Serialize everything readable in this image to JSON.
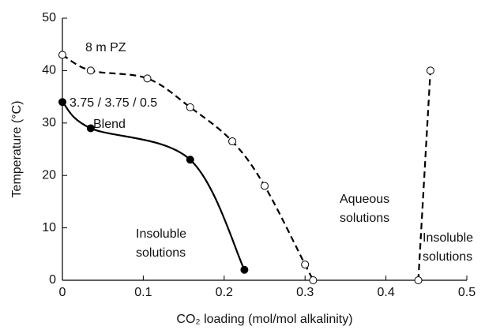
{
  "chart_data": {
    "type": "line",
    "x_label": "CO₂ loading (mol/mol alkalinity)",
    "y_label": "Temperature (°C)",
    "xlim": [
      0,
      0.5
    ],
    "xticks": [
      0,
      0.1,
      0.2,
      0.3,
      0.4,
      0.5
    ],
    "ylim": [
      0,
      50
    ],
    "yticks": [
      0,
      10,
      20,
      30,
      40,
      50
    ],
    "series": [
      {
        "color": "#000000",
        "dash": true,
        "marker": "open",
        "x": [
          0,
          0.035,
          0.105,
          0.158,
          0.21,
          0.25,
          0.3,
          0.31
        ],
        "values": [
          43,
          40,
          38.5,
          33,
          26.5,
          18,
          3,
          0
        ]
      },
      {
        "color": "#000000",
        "dash": false,
        "marker": "filled",
        "x": [
          0,
          0.035,
          0.158,
          0.225
        ],
        "values": [
          34,
          29,
          23,
          2
        ]
      },
      {
        "color": "#000000",
        "dash": true,
        "marker": "open",
        "x": [
          0.44,
          0.455
        ],
        "values": [
          0,
          40
        ]
      }
    ],
    "annotations": [
      [
        "8 m PZ"
      ],
      [
        "3.75 / 3.75 / 0.5"
      ],
      [
        "Blend"
      ],
      [
        "Insoluble",
        "solutions"
      ],
      [
        "Aqueous",
        "solutions"
      ],
      [
        "Insoluble",
        "solutions"
      ]
    ]
  }
}
